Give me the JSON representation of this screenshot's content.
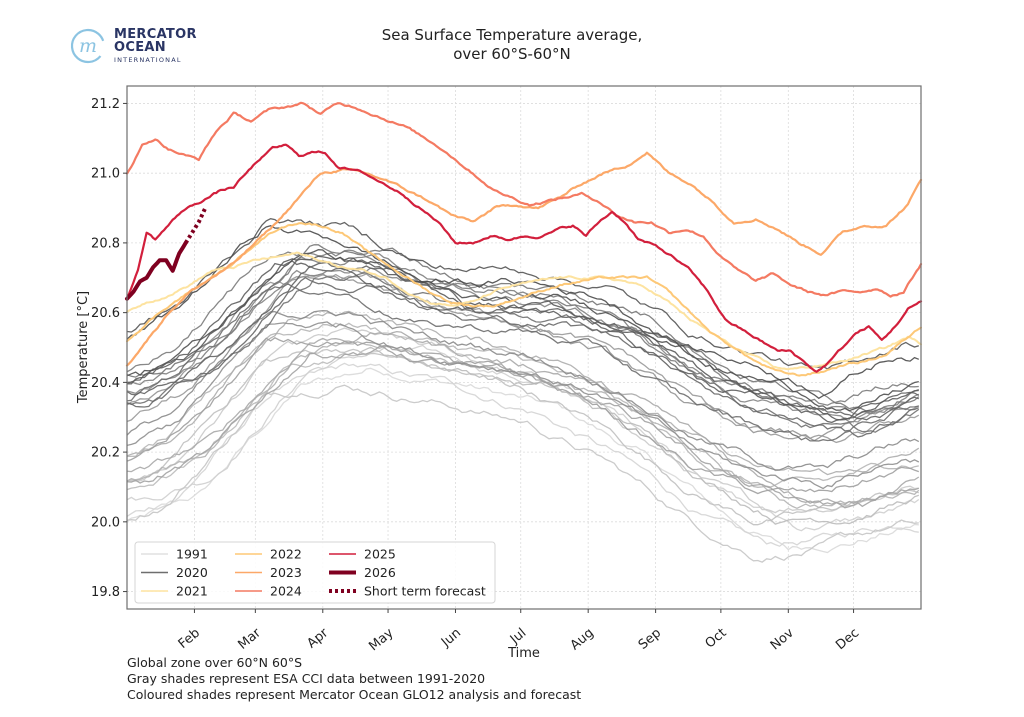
{
  "logo": {
    "brand_line1": "MERCATOR",
    "brand_line2": "OCEAN",
    "brand_line3": "INTERNATIONAL",
    "mark_letter": "m",
    "mark_color": "#8cc4e2",
    "text_color": "#2a3564"
  },
  "footnotes": [
    "Global zone over 60°N 60°S",
    "Gray shades represent ESA CCI data between 1991-2020",
    "Coloured shades represent Mercator Ocean GLO12 analysis and forecast"
  ],
  "chart_data": {
    "type": "line",
    "title": "Sea Surface Temperature average,",
    "subtitle": "over 60°S-60°N",
    "xlabel": "Time",
    "ylabel": "Temperature [°C]",
    "x_unit": "day_of_year",
    "xlim": [
      1,
      366
    ],
    "ylim": [
      19.75,
      21.25
    ],
    "grid": true,
    "legend_position": "bottom-left",
    "x_ticks": [
      {
        "day": 32,
        "label": "Feb"
      },
      {
        "day": 60,
        "label": "Mar"
      },
      {
        "day": 91,
        "label": "Apr"
      },
      {
        "day": 121,
        "label": "May"
      },
      {
        "day": 152,
        "label": "Jun"
      },
      {
        "day": 182,
        "label": "Jul"
      },
      {
        "day": 213,
        "label": "Aug"
      },
      {
        "day": 244,
        "label": "Sep"
      },
      {
        "day": 274,
        "label": "Oct"
      },
      {
        "day": 305,
        "label": "Nov"
      },
      {
        "day": 335,
        "label": "Dec"
      }
    ],
    "y_ticks": [
      19.8,
      20.0,
      20.2,
      20.4,
      20.6,
      20.8,
      21.0,
      21.2
    ],
    "y_tick_labels": [
      "19.8",
      "20.0",
      "20.2",
      "20.4",
      "20.6",
      "20.8",
      "21.0",
      "21.2"
    ],
    "legend": [
      {
        "label": "1991",
        "color": "#e0e0e0",
        "style": "solid"
      },
      {
        "label": "2020",
        "color": "#6e6e6e",
        "style": "solid"
      },
      {
        "label": "2021",
        "color": "#fde3a0",
        "style": "solid"
      },
      {
        "label": "2022",
        "color": "#fdc877",
        "style": "solid"
      },
      {
        "label": "2023",
        "color": "#fca868",
        "style": "solid"
      },
      {
        "label": "2024",
        "color": "#f47a62",
        "style": "solid"
      },
      {
        "label": "2025",
        "color": "#d21f3c",
        "style": "solid"
      },
      {
        "label": "2026",
        "color": "#7f0020",
        "style": "thick"
      },
      {
        "label": "Short term forecast",
        "color": "#7f0020",
        "style": "dotted"
      }
    ],
    "gray_years": {
      "first_year": 1991,
      "last_year": 2020,
      "color_light": "#d9d9d9",
      "color_dark": "#4a4a4a",
      "early_year_profile": [
        [
          1,
          19.98
        ],
        [
          30,
          20.05
        ],
        [
          75,
          20.36
        ],
        [
          110,
          20.42
        ],
        [
          150,
          20.38
        ],
        [
          195,
          20.3
        ],
        [
          230,
          20.18
        ],
        [
          275,
          19.98
        ],
        [
          300,
          19.9
        ],
        [
          330,
          19.93
        ],
        [
          366,
          19.98
        ]
      ],
      "late_year_profile": [
        [
          1,
          20.5
        ],
        [
          35,
          20.62
        ],
        [
          75,
          20.86
        ],
        [
          110,
          20.82
        ],
        [
          150,
          20.7
        ],
        [
          195,
          20.7
        ],
        [
          230,
          20.66
        ],
        [
          270,
          20.52
        ],
        [
          300,
          20.47
        ],
        [
          330,
          20.4
        ],
        [
          366,
          20.5
        ]
      ]
    },
    "series": [
      {
        "name": "2021",
        "color": "#fde3a0",
        "width": 2,
        "points": [
          [
            1,
            20.6
          ],
          [
            10,
            20.63
          ],
          [
            20,
            20.65
          ],
          [
            30,
            20.68
          ],
          [
            40,
            20.72
          ],
          [
            50,
            20.73
          ],
          [
            60,
            20.75
          ],
          [
            70,
            20.76
          ],
          [
            80,
            20.77
          ],
          [
            90,
            20.75
          ],
          [
            100,
            20.73
          ],
          [
            110,
            20.72
          ],
          [
            120,
            20.7
          ],
          [
            130,
            20.66
          ],
          [
            140,
            20.63
          ],
          [
            150,
            20.62
          ],
          [
            160,
            20.63
          ],
          [
            170,
            20.66
          ],
          [
            180,
            20.68
          ],
          [
            190,
            20.69
          ],
          [
            200,
            20.7
          ],
          [
            210,
            20.7
          ],
          [
            220,
            20.7
          ],
          [
            230,
            20.69
          ],
          [
            240,
            20.67
          ],
          [
            250,
            20.63
          ],
          [
            260,
            20.58
          ],
          [
            270,
            20.54
          ],
          [
            280,
            20.5
          ],
          [
            290,
            20.47
          ],
          [
            300,
            20.44
          ],
          [
            310,
            20.44
          ],
          [
            320,
            20.45
          ],
          [
            330,
            20.46
          ],
          [
            340,
            20.48
          ],
          [
            350,
            20.5
          ],
          [
            360,
            20.53
          ],
          [
            366,
            20.51
          ]
        ]
      },
      {
        "name": "2022",
        "color": "#fdc877",
        "width": 2,
        "points": [
          [
            1,
            20.52
          ],
          [
            10,
            20.57
          ],
          [
            20,
            20.62
          ],
          [
            30,
            20.66
          ],
          [
            40,
            20.7
          ],
          [
            50,
            20.74
          ],
          [
            60,
            20.8
          ],
          [
            70,
            20.84
          ],
          [
            80,
            20.86
          ],
          [
            90,
            20.85
          ],
          [
            100,
            20.83
          ],
          [
            110,
            20.78
          ],
          [
            120,
            20.74
          ],
          [
            130,
            20.7
          ],
          [
            140,
            20.66
          ],
          [
            150,
            20.63
          ],
          [
            160,
            20.62
          ],
          [
            170,
            20.62
          ],
          [
            180,
            20.64
          ],
          [
            190,
            20.66
          ],
          [
            200,
            20.68
          ],
          [
            210,
            20.69
          ],
          [
            220,
            20.7
          ],
          [
            230,
            20.7
          ],
          [
            240,
            20.7
          ],
          [
            250,
            20.66
          ],
          [
            260,
            20.6
          ],
          [
            270,
            20.54
          ],
          [
            280,
            20.5
          ],
          [
            290,
            20.46
          ],
          [
            300,
            20.43
          ],
          [
            310,
            20.42
          ],
          [
            320,
            20.43
          ],
          [
            330,
            20.45
          ],
          [
            340,
            20.46
          ],
          [
            350,
            20.48
          ],
          [
            360,
            20.53
          ],
          [
            366,
            20.56
          ]
        ]
      },
      {
        "name": "2023",
        "color": "#fca868",
        "width": 2.2,
        "points": [
          [
            1,
            20.45
          ],
          [
            10,
            20.52
          ],
          [
            20,
            20.6
          ],
          [
            30,
            20.66
          ],
          [
            40,
            20.7
          ],
          [
            50,
            20.74
          ],
          [
            60,
            20.8
          ],
          [
            70,
            20.86
          ],
          [
            80,
            20.93
          ],
          [
            90,
            21.0
          ],
          [
            100,
            21.01
          ],
          [
            110,
            21.0
          ],
          [
            120,
            20.98
          ],
          [
            130,
            20.95
          ],
          [
            140,
            20.92
          ],
          [
            150,
            20.88
          ],
          [
            160,
            20.86
          ],
          [
            170,
            20.9
          ],
          [
            180,
            20.91
          ],
          [
            190,
            20.9
          ],
          [
            200,
            20.93
          ],
          [
            210,
            20.97
          ],
          [
            220,
            21.0
          ],
          [
            230,
            21.02
          ],
          [
            240,
            21.06
          ],
          [
            250,
            21.0
          ],
          [
            260,
            20.97
          ],
          [
            270,
            20.92
          ],
          [
            280,
            20.86
          ],
          [
            290,
            20.87
          ],
          [
            300,
            20.84
          ],
          [
            310,
            20.8
          ],
          [
            320,
            20.77
          ],
          [
            330,
            20.83
          ],
          [
            340,
            20.85
          ],
          [
            350,
            20.85
          ],
          [
            360,
            20.91
          ],
          [
            366,
            20.98
          ]
        ]
      },
      {
        "name": "2024",
        "color": "#f47a62",
        "width": 2.2,
        "points": [
          [
            1,
            21.0
          ],
          [
            8,
            21.08
          ],
          [
            14,
            21.1
          ],
          [
            20,
            21.07
          ],
          [
            28,
            21.05
          ],
          [
            34,
            21.04
          ],
          [
            42,
            21.12
          ],
          [
            50,
            21.17
          ],
          [
            58,
            21.15
          ],
          [
            66,
            21.18
          ],
          [
            74,
            21.19
          ],
          [
            82,
            21.2
          ],
          [
            90,
            21.17
          ],
          [
            98,
            21.2
          ],
          [
            106,
            21.19
          ],
          [
            114,
            21.17
          ],
          [
            122,
            21.15
          ],
          [
            130,
            21.13
          ],
          [
            138,
            21.1
          ],
          [
            146,
            21.07
          ],
          [
            154,
            21.03
          ],
          [
            162,
            20.99
          ],
          [
            170,
            20.95
          ],
          [
            178,
            20.93
          ],
          [
            186,
            20.91
          ],
          [
            194,
            20.92
          ],
          [
            202,
            20.93
          ],
          [
            210,
            20.94
          ],
          [
            218,
            20.92
          ],
          [
            226,
            20.88
          ],
          [
            234,
            20.86
          ],
          [
            242,
            20.86
          ],
          [
            250,
            20.83
          ],
          [
            258,
            20.84
          ],
          [
            266,
            20.82
          ],
          [
            274,
            20.76
          ],
          [
            282,
            20.72
          ],
          [
            290,
            20.69
          ],
          [
            298,
            20.71
          ],
          [
            306,
            20.68
          ],
          [
            314,
            20.66
          ],
          [
            322,
            20.65
          ],
          [
            330,
            20.66
          ],
          [
            338,
            20.66
          ],
          [
            346,
            20.67
          ],
          [
            352,
            20.65
          ],
          [
            358,
            20.66
          ],
          [
            366,
            20.74
          ]
        ]
      },
      {
        "name": "2025",
        "color": "#d21f3c",
        "width": 2.2,
        "points": [
          [
            1,
            20.64
          ],
          [
            6,
            20.72
          ],
          [
            10,
            20.83
          ],
          [
            14,
            20.81
          ],
          [
            20,
            20.85
          ],
          [
            26,
            20.89
          ],
          [
            32,
            20.91
          ],
          [
            38,
            20.93
          ],
          [
            44,
            20.95
          ],
          [
            50,
            20.96
          ],
          [
            56,
            21.0
          ],
          [
            62,
            21.04
          ],
          [
            68,
            21.07
          ],
          [
            74,
            21.08
          ],
          [
            80,
            21.05
          ],
          [
            86,
            21.06
          ],
          [
            92,
            21.06
          ],
          [
            98,
            21.02
          ],
          [
            104,
            21.01
          ],
          [
            110,
            21.0
          ],
          [
            116,
            20.98
          ],
          [
            122,
            20.96
          ],
          [
            128,
            20.94
          ],
          [
            136,
            20.9
          ],
          [
            144,
            20.86
          ],
          [
            152,
            20.8
          ],
          [
            160,
            20.8
          ],
          [
            168,
            20.82
          ],
          [
            176,
            20.81
          ],
          [
            184,
            20.82
          ],
          [
            192,
            20.82
          ],
          [
            200,
            20.84
          ],
          [
            206,
            20.85
          ],
          [
            212,
            20.82
          ],
          [
            218,
            20.86
          ],
          [
            224,
            20.89
          ],
          [
            230,
            20.86
          ],
          [
            236,
            20.81
          ],
          [
            244,
            20.79
          ],
          [
            252,
            20.76
          ],
          [
            260,
            20.72
          ],
          [
            268,
            20.66
          ],
          [
            276,
            20.58
          ],
          [
            284,
            20.55
          ],
          [
            292,
            20.52
          ],
          [
            300,
            20.49
          ],
          [
            306,
            20.49
          ],
          [
            312,
            20.46
          ],
          [
            318,
            20.43
          ],
          [
            324,
            20.46
          ],
          [
            330,
            20.5
          ],
          [
            336,
            20.54
          ],
          [
            342,
            20.56
          ],
          [
            348,
            20.52
          ],
          [
            354,
            20.56
          ],
          [
            360,
            20.61
          ],
          [
            366,
            20.63
          ]
        ]
      },
      {
        "name": "2026",
        "color": "#7f0020",
        "width": 4,
        "points": [
          [
            1,
            20.64
          ],
          [
            4,
            20.66
          ],
          [
            7,
            20.69
          ],
          [
            10,
            20.7
          ],
          [
            13,
            20.73
          ],
          [
            16,
            20.75
          ],
          [
            19,
            20.75
          ],
          [
            22,
            20.72
          ],
          [
            25,
            20.77
          ],
          [
            28,
            20.8
          ]
        ]
      }
    ],
    "forecast": {
      "name": "Short term forecast",
      "color": "#7f0020",
      "points": [
        [
          28,
          20.8
        ],
        [
          31,
          20.83
        ],
        [
          34,
          20.86
        ],
        [
          37,
          20.9
        ]
      ]
    }
  }
}
